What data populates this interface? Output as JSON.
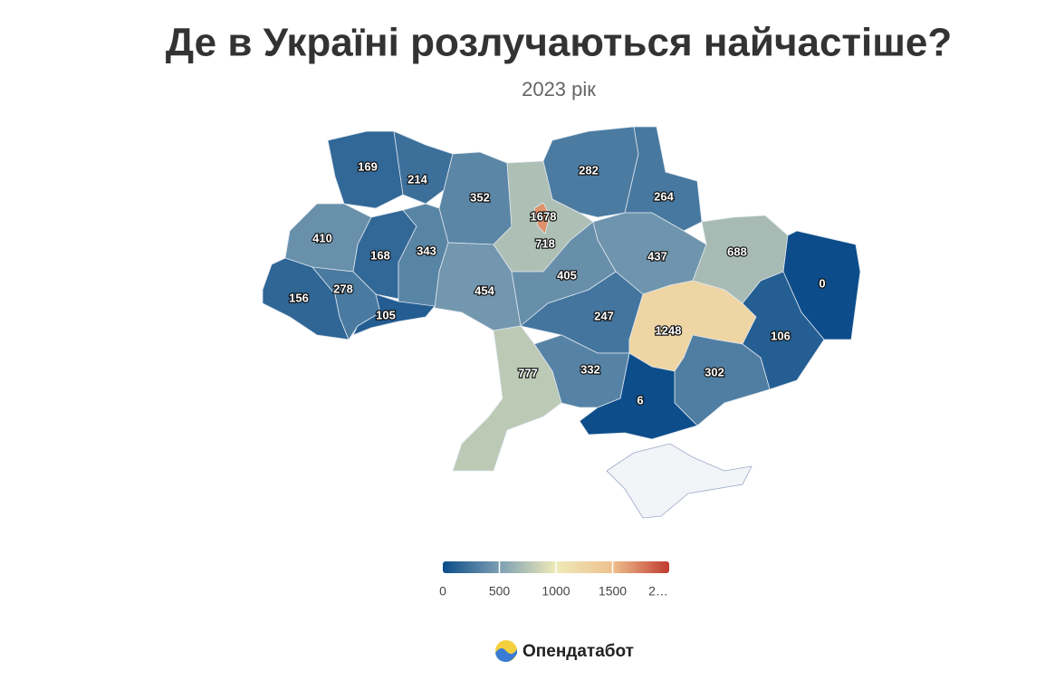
{
  "chart_data": {
    "type": "choropleth",
    "title": "Де в Україні розлучаються найчастіше?",
    "subtitle": "2023 рік",
    "values": [
      169,
      214,
      352,
      718,
      1678,
      282,
      264,
      410,
      168,
      343,
      454,
      405,
      437,
      688,
      0,
      156,
      278,
      105,
      247,
      1248,
      106,
      302,
      6,
      332,
      777
    ],
    "colors": [
      "#0c4c8a",
      "#7c9fb2",
      "#eeeab8",
      "#eec08e",
      "#c13b2f"
    ],
    "xlim": [
      0,
      2000
    ],
    "xticks": [
      0,
      500,
      1000,
      1500,
      {
        "value": 2000,
        "label": "2…"
      }
    ]
  },
  "brand": "Опендатабот"
}
